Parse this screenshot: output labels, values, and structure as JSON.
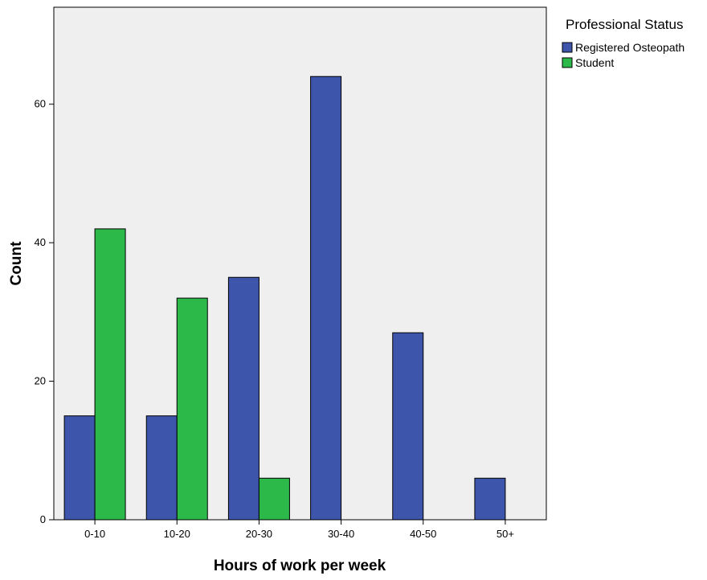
{
  "chart_data": {
    "type": "bar",
    "title": "",
    "xlabel": "Hours of work per week",
    "ylabel": "Count",
    "categories": [
      "0-10",
      "10-20",
      "20-30",
      "30-40",
      "40-50",
      "50+"
    ],
    "series": [
      {
        "name": "Registered Osteopath",
        "color": "#3d55aa",
        "values": [
          15,
          15,
          35,
          64,
          27,
          6
        ]
      },
      {
        "name": "Student",
        "color": "#2db84a",
        "values": [
          42,
          32,
          6,
          0,
          0,
          0
        ]
      }
    ],
    "ylim": [
      0,
      74
    ],
    "yticks": [
      0,
      20,
      40,
      60
    ],
    "grid": false,
    "plot_background": "#efefef",
    "legend": {
      "title": "Professional Status",
      "position": "right"
    }
  }
}
